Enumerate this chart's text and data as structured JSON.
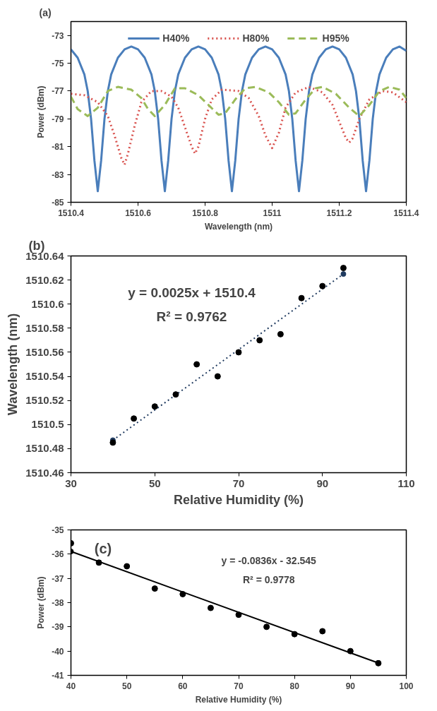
{
  "chart_data": [
    {
      "type": "line",
      "xlabel": "Wavelength (nm)",
      "ylabel": "Power (dBm)",
      "annotations": [
        "(a)"
      ],
      "xlim": [
        1510.4,
        1511.4
      ],
      "ylim": [
        -85,
        -72
      ],
      "xticks": [
        1510.4,
        1510.6,
        1510.8,
        1511,
        1511.2,
        1511.4
      ],
      "yticks": [
        -85,
        -83,
        -81,
        -79,
        -77,
        -75,
        -73
      ],
      "legend": "top",
      "marker": "none",
      "series": [
        {
          "name": "H40%",
          "color": "#4a7ebb",
          "line_style": "solid",
          "x": [
            1510.4,
            1510.42,
            1510.44,
            1510.45,
            1510.46,
            1510.47,
            1510.48,
            1510.49,
            1510.5,
            1510.51,
            1510.52,
            1510.54,
            1510.56,
            1510.58,
            1510.6,
            1510.62,
            1510.64,
            1510.65,
            1510.66,
            1510.67,
            1510.68,
            1510.69,
            1510.7,
            1510.71,
            1510.72,
            1510.74,
            1510.76,
            1510.78,
            1510.8,
            1510.82,
            1510.84,
            1510.85,
            1510.86,
            1510.87,
            1510.88,
            1510.89,
            1510.9,
            1510.91,
            1510.92,
            1510.94,
            1510.96,
            1510.98,
            1511.0,
            1511.02,
            1511.04,
            1511.05,
            1511.06,
            1511.07,
            1511.08,
            1511.09,
            1511.1,
            1511.11,
            1511.12,
            1511.14,
            1511.16,
            1511.18,
            1511.2,
            1511.22,
            1511.24,
            1511.25,
            1511.26,
            1511.27,
            1511.28,
            1511.29,
            1511.3,
            1511.31,
            1511.32,
            1511.34,
            1511.36,
            1511.38,
            1511.4
          ],
          "values": [
            -74.0,
            -74.6,
            -75.8,
            -77.0,
            -79.0,
            -82.0,
            -84.2,
            -82.0,
            -79.0,
            -77.0,
            -75.8,
            -74.6,
            -74.0,
            -73.8,
            -74.0,
            -74.6,
            -75.8,
            -77.0,
            -79.0,
            -82.0,
            -84.2,
            -82.0,
            -79.0,
            -77.0,
            -75.8,
            -74.6,
            -74.0,
            -73.8,
            -74.0,
            -74.6,
            -75.8,
            -77.0,
            -79.0,
            -82.0,
            -84.2,
            -82.0,
            -79.0,
            -77.0,
            -75.8,
            -74.6,
            -74.0,
            -73.8,
            -74.0,
            -74.6,
            -75.8,
            -77.0,
            -79.0,
            -82.0,
            -84.2,
            -82.0,
            -79.0,
            -77.0,
            -75.8,
            -74.6,
            -74.0,
            -73.8,
            -74.0,
            -74.6,
            -75.8,
            -77.0,
            -79.0,
            -82.0,
            -84.2,
            -82.0,
            -79.0,
            -77.0,
            -75.8,
            -74.6,
            -74.0,
            -73.8,
            -74.1
          ]
        },
        {
          "name": "H80%",
          "color": "#d9534f",
          "line_style": "dotted",
          "x": [
            1510.4,
            1510.44,
            1510.48,
            1510.51,
            1510.53,
            1510.55,
            1510.56,
            1510.57,
            1510.59,
            1510.61,
            1510.64,
            1510.67,
            1510.7,
            1510.72,
            1510.74,
            1510.76,
            1510.77,
            1510.78,
            1510.8,
            1510.82,
            1510.85,
            1510.9,
            1510.93,
            1510.96,
            1510.98,
            1511.0,
            1511.02,
            1511.04,
            1511.07,
            1511.11,
            1511.15,
            1511.18,
            1511.2,
            1511.22,
            1511.23,
            1511.24,
            1511.26,
            1511.29,
            1511.33,
            1511.36,
            1511.4
          ],
          "values": [
            -77.2,
            -77.3,
            -77.8,
            -78.8,
            -80.2,
            -81.8,
            -82.3,
            -81.5,
            -79.5,
            -77.8,
            -77.0,
            -77.0,
            -77.4,
            -78.2,
            -79.6,
            -81.0,
            -81.5,
            -81.0,
            -79.0,
            -77.6,
            -76.9,
            -77.0,
            -77.5,
            -78.8,
            -80.2,
            -81.1,
            -80.0,
            -78.2,
            -77.1,
            -76.7,
            -77.1,
            -78.0,
            -79.2,
            -80.4,
            -80.7,
            -80.4,
            -79.0,
            -77.6,
            -77.0,
            -77.1,
            -77.8
          ]
        },
        {
          "name": "H95%",
          "color": "#9bbb59",
          "line_style": "dashed",
          "x": [
            1510.4,
            1510.42,
            1510.45,
            1510.48,
            1510.51,
            1510.54,
            1510.58,
            1510.61,
            1510.63,
            1510.65,
            1510.68,
            1510.71,
            1510.74,
            1510.78,
            1510.81,
            1510.84,
            1510.86,
            1510.89,
            1510.92,
            1510.95,
            1510.99,
            1511.02,
            1511.05,
            1511.07,
            1511.1,
            1511.13,
            1511.15,
            1511.19,
            1511.23,
            1511.26,
            1511.29,
            1511.32,
            1511.35,
            1511.38,
            1511.4
          ],
          "values": [
            -77.4,
            -78.3,
            -78.8,
            -78.2,
            -77.0,
            -76.7,
            -76.9,
            -77.5,
            -78.3,
            -78.8,
            -78.0,
            -76.8,
            -76.8,
            -77.3,
            -78.0,
            -78.7,
            -78.6,
            -77.6,
            -76.8,
            -76.7,
            -77.1,
            -77.8,
            -78.7,
            -78.6,
            -77.6,
            -76.8,
            -76.7,
            -77.2,
            -78.2,
            -78.8,
            -78.0,
            -77.0,
            -76.7,
            -76.9,
            -77.5
          ]
        }
      ]
    },
    {
      "type": "scatter",
      "xlabel": "Relative Humidity (%)",
      "ylabel": "Wavelength (nm)",
      "annotations": [
        "(b)",
        "y = 0.0025x + 1510.4",
        "R² = 0.9762"
      ],
      "xlim": [
        30,
        110
      ],
      "ylim": [
        1510.46,
        1510.64
      ],
      "xticks": [
        30,
        50,
        70,
        90,
        110
      ],
      "yticks": [
        1510.46,
        1510.48,
        1510.5,
        1510.52,
        1510.54,
        1510.56,
        1510.58,
        1510.6,
        1510.62,
        1510.64
      ],
      "marker": "circle",
      "x": [
        40,
        45,
        50,
        55,
        60,
        65,
        70,
        75,
        80,
        85,
        90,
        95
      ],
      "series": [
        {
          "type": "line",
          "color": "#1f3a5f",
          "line_style": "dotted",
          "x": [
            40,
            95
          ],
          "values": [
            1510.487,
            1510.625
          ]
        },
        {
          "color": "#000000",
          "values": [
            1510.485,
            1510.505,
            1510.515,
            1510.525,
            1510.55,
            1510.54,
            1510.56,
            1510.57,
            1510.575,
            1510.605,
            1510.615,
            1510.63
          ]
        }
      ]
    },
    {
      "type": "scatter",
      "xlabel": "Relative Humidity (%)",
      "ylabel": "Power (dBm)",
      "annotations": [
        "(c)",
        "y = -0.0836x - 32.545",
        "R² = 0.9778"
      ],
      "xlim": [
        40,
        100
      ],
      "ylim": [
        -41,
        -35
      ],
      "xticks": [
        40,
        50,
        60,
        70,
        80,
        90,
        100
      ],
      "yticks": [
        -41,
        -40,
        -39,
        -38,
        -37,
        -36,
        -35
      ],
      "marker": "circle",
      "x": [
        40,
        45,
        50,
        55,
        60,
        65,
        70,
        75,
        80,
        85,
        90,
        95
      ],
      "series": [
        {
          "type": "line",
          "color": "#000000",
          "line_style": "solid",
          "x": [
            40,
            95
          ],
          "values": [
            -35.89,
            -40.49
          ]
        },
        {
          "color": "#000000",
          "values": [
            -35.55,
            -36.35,
            -36.5,
            -37.42,
            -37.65,
            -38.22,
            -38.5,
            -39.0,
            -39.3,
            -39.18,
            -40.0,
            -40.5
          ]
        }
      ]
    }
  ]
}
